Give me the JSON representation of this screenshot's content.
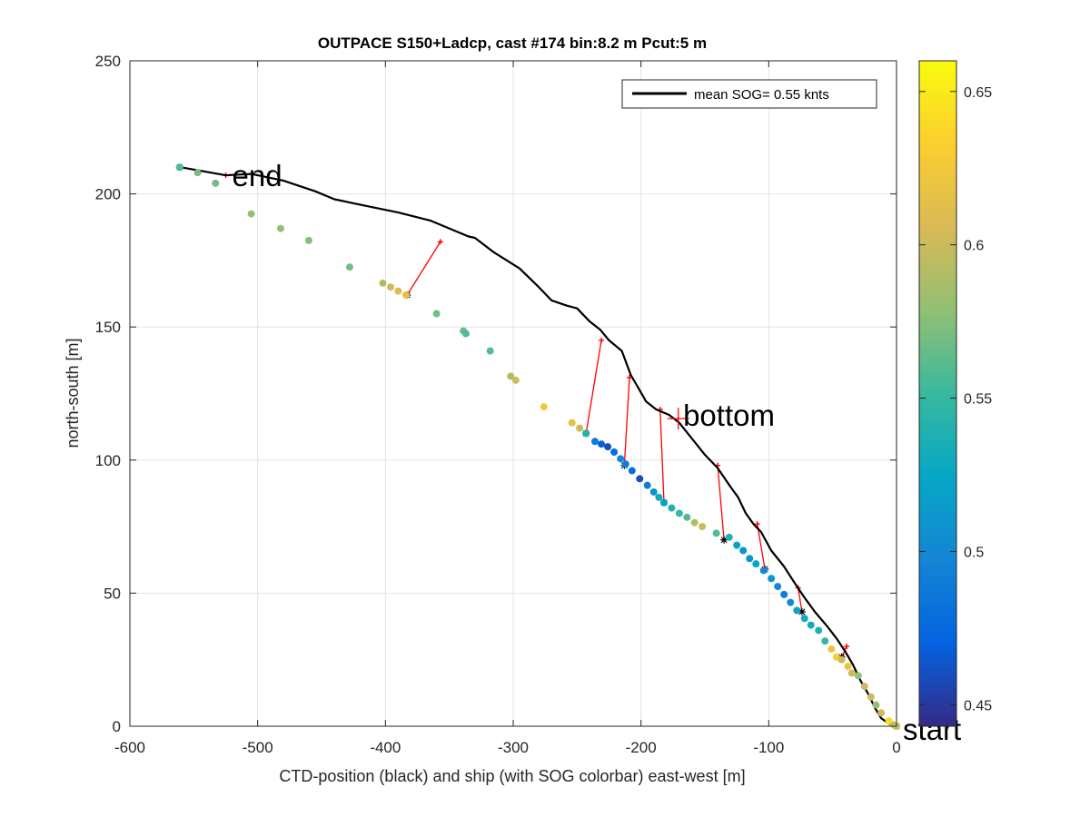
{
  "chart_data": {
    "type": "scatter",
    "title": "OUTPACE S150+Ladcp, cast #174 bin:8.2 m  Pcut:5 m",
    "xlabel": "CTD-position (black) and ship (with SOG colorbar) east-west [m]",
    "ylabel": "north-south [m]",
    "xlim": [
      -600,
      0
    ],
    "ylim": [
      0,
      250
    ],
    "xticks": [
      -600,
      -500,
      -400,
      -300,
      -200,
      -100,
      0
    ],
    "yticks": [
      0,
      50,
      100,
      150,
      200,
      250
    ],
    "grid": true,
    "legend": {
      "position": "top-right",
      "label": "mean SOG=  0.55 knts"
    },
    "colorbar": {
      "lim": [
        0.443,
        0.66
      ],
      "ticks": [
        0.45,
        0.5,
        0.55,
        0.6,
        0.65
      ],
      "colormap": [
        "#352A87",
        "#0363E1",
        "#1485D4",
        "#06A7C6",
        "#38B99E",
        "#92BF73",
        "#D9BA56",
        "#FCCE2E",
        "#F9FB0E"
      ]
    },
    "annotations": [
      {
        "text": "end",
        "x": -520,
        "y": 207
      },
      {
        "text": "bottom",
        "x": -167,
        "y": 117
      },
      {
        "text": "start",
        "x": 5,
        "y": -1
      }
    ],
    "ctd_track": [
      [
        -560,
        210
      ],
      [
        -525,
        207
      ],
      [
        -505,
        207.5
      ],
      [
        -480,
        205
      ],
      [
        -455,
        201
      ],
      [
        -440,
        198
      ],
      [
        -410,
        195
      ],
      [
        -390,
        193
      ],
      [
        -365,
        190
      ],
      [
        -345,
        186
      ],
      [
        -335,
        184
      ],
      [
        -330,
        183.5
      ],
      [
        -315,
        178
      ],
      [
        -295,
        172
      ],
      [
        -280,
        165
      ],
      [
        -270,
        160
      ],
      [
        -258,
        158
      ],
      [
        -250,
        157
      ],
      [
        -240,
        152
      ],
      [
        -232,
        149
      ],
      [
        -225,
        145
      ],
      [
        -215,
        141
      ],
      [
        -208,
        132
      ],
      [
        -202,
        127
      ],
      [
        -196,
        122
      ],
      [
        -188,
        119
      ],
      [
        -178,
        117
      ],
      [
        -170,
        114
      ],
      [
        -160,
        108
      ],
      [
        -150,
        102
      ],
      [
        -140,
        97
      ],
      [
        -130,
        90
      ],
      [
        -124,
        86
      ],
      [
        -118,
        80
      ],
      [
        -112,
        76
      ],
      [
        -106,
        73
      ],
      [
        -98,
        66
      ],
      [
        -88,
        60
      ],
      [
        -80,
        54
      ],
      [
        -73,
        49
      ],
      [
        -64,
        43
      ],
      [
        -55,
        38
      ],
      [
        -47,
        33
      ],
      [
        -40,
        28
      ],
      [
        -34,
        23
      ],
      [
        -28,
        17
      ],
      [
        -22,
        12
      ],
      [
        -17,
        7
      ],
      [
        -12,
        3
      ],
      [
        -6,
        1
      ],
      [
        0,
        0
      ]
    ],
    "ship_track": [
      [
        -561,
        210,
        0.56
      ],
      [
        -547,
        208,
        0.57
      ],
      [
        -533,
        204,
        0.57
      ],
      [
        -505,
        192.5,
        0.58
      ],
      [
        -482,
        187,
        0.58
      ],
      [
        -460,
        182.5,
        0.575
      ],
      [
        -428,
        172.5,
        0.57
      ],
      [
        -402,
        166.5,
        0.59
      ],
      [
        -396,
        165,
        0.6
      ],
      [
        -390,
        163.5,
        0.61
      ],
      [
        -384,
        162,
        0.615
      ],
      [
        -360,
        155,
        0.57
      ],
      [
        -339,
        148.5,
        0.565
      ],
      [
        -337,
        147.5,
        0.56
      ],
      [
        -318,
        141,
        0.56
      ],
      [
        -302,
        131.5,
        0.59
      ],
      [
        -298,
        130,
        0.6
      ],
      [
        -276,
        120,
        0.625
      ],
      [
        -254,
        114,
        0.615
      ],
      [
        -248,
        112,
        0.6
      ],
      [
        -243,
        110,
        0.54
      ],
      [
        -236,
        107,
        0.49
      ],
      [
        -231,
        106,
        0.47
      ],
      [
        -226,
        105,
        0.46
      ],
      [
        -221,
        103,
        0.48
      ],
      [
        -216,
        100.5,
        0.5
      ],
      [
        -212,
        98.5,
        0.49
      ],
      [
        -207,
        96,
        0.48
      ],
      [
        -201,
        93,
        0.46
      ],
      [
        -195,
        90.5,
        0.49
      ],
      [
        -190,
        88,
        0.51
      ],
      [
        -186,
        86,
        0.53
      ],
      [
        -182,
        84,
        0.52
      ],
      [
        -176,
        82,
        0.54
      ],
      [
        -170,
        80,
        0.55
      ],
      [
        -164,
        78.5,
        0.56
      ],
      [
        -158,
        76.5,
        0.59
      ],
      [
        -152,
        75,
        0.6
      ],
      [
        -141,
        72.5,
        0.56
      ],
      [
        -131,
        71,
        0.54
      ],
      [
        -125,
        68,
        0.52
      ],
      [
        -120,
        66,
        0.51
      ],
      [
        -115,
        63,
        0.51
      ],
      [
        -110,
        61,
        0.52
      ],
      [
        -104,
        58.5,
        0.5
      ],
      [
        -98,
        55.5,
        0.51
      ],
      [
        -93,
        52.5,
        0.5
      ],
      [
        -88,
        49.5,
        0.49
      ],
      [
        -83,
        46.5,
        0.5
      ],
      [
        -78,
        43.5,
        0.52
      ],
      [
        -72,
        40.5,
        0.53
      ],
      [
        -67,
        38,
        0.53
      ],
      [
        -61,
        36,
        0.54
      ],
      [
        -56,
        32,
        0.55
      ],
      [
        -51,
        29,
        0.62
      ],
      [
        -47,
        26,
        0.63
      ],
      [
        -43,
        25,
        0.6
      ],
      [
        -38,
        22.5,
        0.62
      ],
      [
        -35,
        20,
        0.6
      ],
      [
        -30,
        19,
        0.58
      ],
      [
        -25,
        15,
        0.6
      ],
      [
        -20,
        11,
        0.6
      ],
      [
        -16,
        8,
        0.58
      ],
      [
        -12,
        5,
        0.6
      ],
      [
        -6,
        2,
        0.64
      ],
      [
        -2,
        0.5,
        0.6
      ],
      [
        0,
        0,
        0.6
      ]
    ],
    "connections": [
      {
        "ctd": [
          -525,
          207
        ],
        "ship": [
          -561,
          210
        ]
      },
      {
        "ctd": [
          -357,
          182
        ],
        "ship": [
          -383,
          162
        ]
      },
      {
        "ctd": [
          -231,
          145
        ],
        "ship": [
          -243,
          110
        ]
      },
      {
        "ctd": [
          -209,
          131
        ],
        "ship": [
          -213,
          98
        ]
      },
      {
        "ctd": [
          -185,
          119
        ],
        "ship": [
          -182,
          84
        ]
      },
      {
        "ctd": [
          -140,
          98
        ],
        "ship": [
          -135,
          70
        ]
      },
      {
        "ctd": [
          -109,
          76
        ],
        "ship": [
          -103,
          59
        ]
      },
      {
        "ctd": [
          -77,
          52
        ],
        "ship": [
          -74,
          43
        ]
      },
      {
        "ctd": [
          -39,
          30
        ],
        "ship": [
          -43,
          26
        ]
      },
      {
        "ctd": [
          0,
          0
        ],
        "ship": [
          0,
          0
        ]
      }
    ]
  }
}
